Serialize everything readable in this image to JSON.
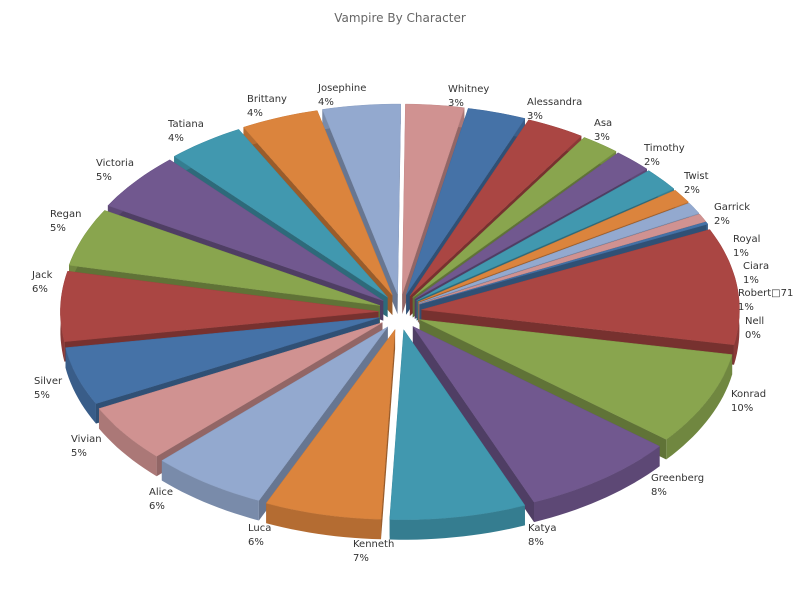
{
  "chart_data": {
    "type": "pie",
    "variant": "3d-exploded",
    "title": "Vampire By Character",
    "slices": [
      {
        "label": "Whitney",
        "value": 3,
        "pct": "3%",
        "color": "#d09291"
      },
      {
        "label": "Alessandra",
        "value": 3,
        "pct": "3%",
        "color": "#4572a7"
      },
      {
        "label": "Asa",
        "value": 3,
        "pct": "3%",
        "color": "#aa4643"
      },
      {
        "label": "Timothy",
        "value": 2,
        "pct": "2%",
        "color": "#89a54e"
      },
      {
        "label": "Twist",
        "value": 2,
        "pct": "2%",
        "color": "#71588f"
      },
      {
        "label": "Garrick",
        "value": 2,
        "pct": "2%",
        "color": "#4198af"
      },
      {
        "label": "Royal",
        "value": 1.2,
        "pct": "1%",
        "color": "#db843d"
      },
      {
        "label": "Ciara",
        "value": 1,
        "pct": "1%",
        "color": "#93a9cf"
      },
      {
        "label": "Robert□71",
        "value": 0.7,
        "pct": "1%",
        "color": "#d09291"
      },
      {
        "label": "Nell",
        "value": 0.2,
        "pct": "0%",
        "color": "#4572a7"
      },
      {
        "label": "Konrad",
        "value": 10,
        "pct": "10%",
        "color": "#aa4643"
      },
      {
        "label": "Greenberg",
        "value": 8,
        "pct": "8%",
        "color": "#89a54e"
      },
      {
        "label": "Katya",
        "value": 8,
        "pct": "8%",
        "color": "#71588f"
      },
      {
        "label": "Kenneth",
        "value": 7,
        "pct": "7%",
        "color": "#4198af"
      },
      {
        "label": "Luca",
        "value": 6,
        "pct": "6%",
        "color": "#db843d"
      },
      {
        "label": "Alice",
        "value": 6,
        "pct": "6%",
        "color": "#93a9cf"
      },
      {
        "label": "Vivian",
        "value": 5,
        "pct": "5%",
        "color": "#d09291"
      },
      {
        "label": "Silver",
        "value": 5,
        "pct": "5%",
        "color": "#4572a7"
      },
      {
        "label": "Jack",
        "value": 6,
        "pct": "6%",
        "color": "#aa4643"
      },
      {
        "label": "Regan",
        "value": 5,
        "pct": "5%",
        "color": "#89a54e"
      },
      {
        "label": "Victoria",
        "value": 5,
        "pct": "5%",
        "color": "#71588f"
      },
      {
        "label": "Tatiana",
        "value": 4,
        "pct": "4%",
        "color": "#4198af"
      },
      {
        "label": "Brittany",
        "value": 4,
        "pct": "4%",
        "color": "#db843d"
      },
      {
        "label": "Josephine",
        "value": 4,
        "pct": "4%",
        "color": "#93a9cf"
      }
    ],
    "legend": "none"
  }
}
